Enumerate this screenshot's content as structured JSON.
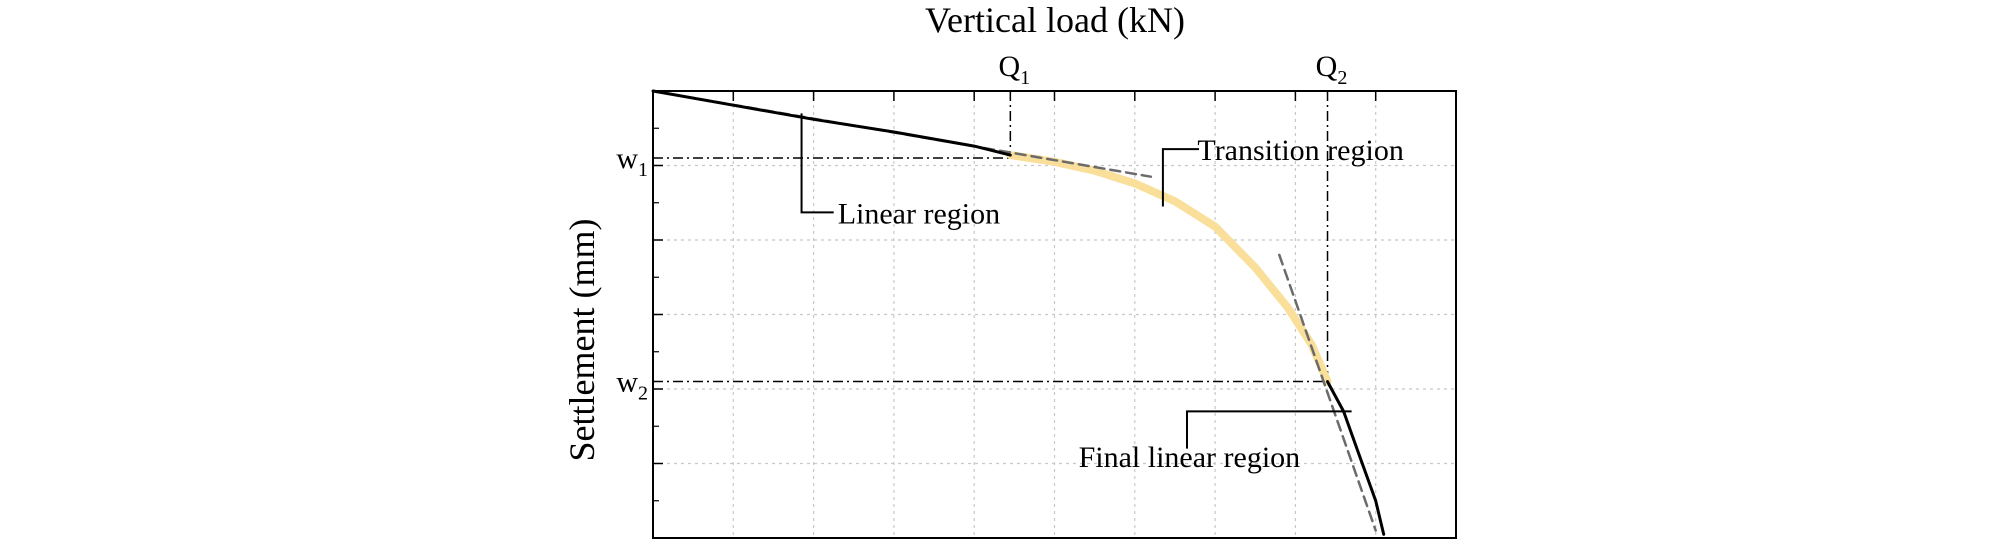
{
  "chart_data": {
    "type": "line",
    "title": "",
    "xlabel": "Vertical load (kN)",
    "ylabel": "Settlement (mm)",
    "x_axis_position": "top",
    "xlim": [
      0,
      10
    ],
    "ylim": [
      6,
      0
    ],
    "grid": true,
    "markers": {
      "Q1": {
        "main": "Q",
        "sub": "1",
        "value": 4.45
      },
      "Q2": {
        "main": "Q",
        "sub": "2",
        "value": 8.4
      },
      "w1": {
        "main": "w",
        "sub": "1",
        "value": 0.9
      },
      "w2": {
        "main": "w",
        "sub": "2",
        "value": 3.9
      }
    },
    "series": [
      {
        "role": "linear",
        "style": "solid",
        "color": "#000000",
        "x": [
          0,
          1.0,
          2.0,
          3.0,
          4.0,
          4.45
        ],
        "y": [
          0,
          0.19,
          0.38,
          0.55,
          0.74,
          0.86
        ]
      },
      {
        "role": "transition",
        "style": "solid",
        "color": "#f9df9a",
        "x": [
          4.45,
          5.0,
          5.5,
          6.0,
          6.5,
          7.0,
          7.5,
          7.9,
          8.2,
          8.4
        ],
        "y": [
          0.86,
          0.95,
          1.07,
          1.24,
          1.48,
          1.82,
          2.37,
          2.9,
          3.4,
          3.9
        ]
      },
      {
        "role": "final-linear",
        "style": "solid",
        "color": "#000000",
        "x": [
          8.4,
          8.6,
          8.8,
          9.0,
          9.1
        ],
        "y": [
          3.9,
          4.3,
          4.9,
          5.5,
          5.95
        ]
      },
      {
        "role": "tangent-initial",
        "style": "dashed",
        "color": "#6b6b6b",
        "x": [
          0,
          6.2
        ],
        "y": [
          0,
          1.15
        ]
      },
      {
        "role": "tangent-final",
        "style": "dashed",
        "color": "#6b6b6b",
        "x": [
          7.8,
          9.0
        ],
        "y": [
          2.2,
          5.9
        ]
      }
    ],
    "annotations": [
      {
        "id": "linear",
        "text": "Linear region"
      },
      {
        "id": "transition",
        "text": "Transition region"
      },
      {
        "id": "final",
        "text": "Final linear region"
      }
    ]
  }
}
